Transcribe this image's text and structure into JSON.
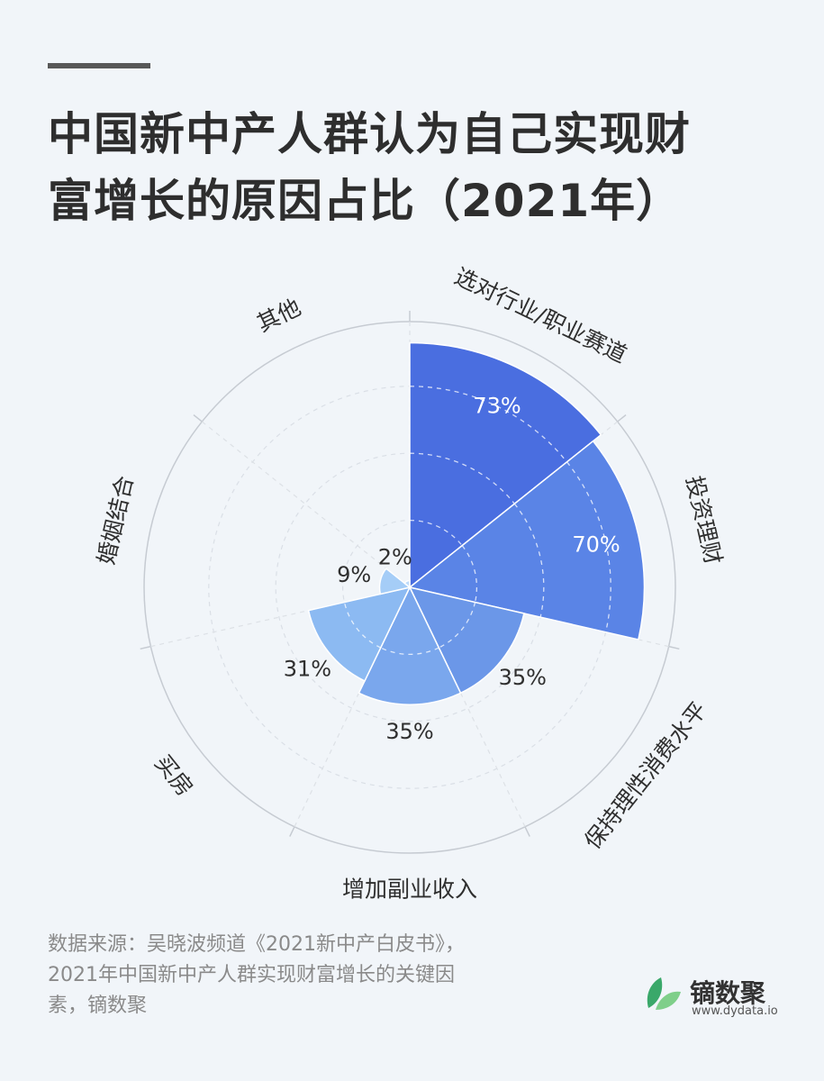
{
  "title_lines": [
    "中国新中产人群认为自己实现财",
    "富增长的原因占比（2021年）"
  ],
  "chart_data": {
    "type": "polar-area",
    "title": "中国新中产人群认为自己实现财富增长的原因占比（2021年）",
    "categories": [
      "选对行业/职业赛道",
      "投资理财",
      "保持理性消费水平",
      "增加副业收入",
      "买房",
      "婚姻结合",
      "其他"
    ],
    "values": [
      73,
      70,
      35,
      35,
      31,
      9,
      2
    ],
    "value_labels": [
      "73%",
      "70%",
      "35%",
      "35%",
      "31%",
      "9%",
      "2%"
    ],
    "unit": "%",
    "rmax": 100,
    "grid_rings": [
      20,
      40,
      60
    ],
    "colors": [
      "#4a6ee0",
      "#5a84e6",
      "#6b97e8",
      "#7aa7ed",
      "#8cbaf2",
      "#a5cdf7",
      "#bfdcfa"
    ]
  },
  "source_lines": [
    "数据来源：吴晓波频道《2021新中产白皮书》，",
    "2021年中国新中产人群实现财富增长的关键因",
    "素，镝数聚"
  ],
  "logo": {
    "name": "镝数聚",
    "url": "www.dydata.io",
    "colors": [
      "#3aa86a",
      "#7fcf8a"
    ]
  }
}
